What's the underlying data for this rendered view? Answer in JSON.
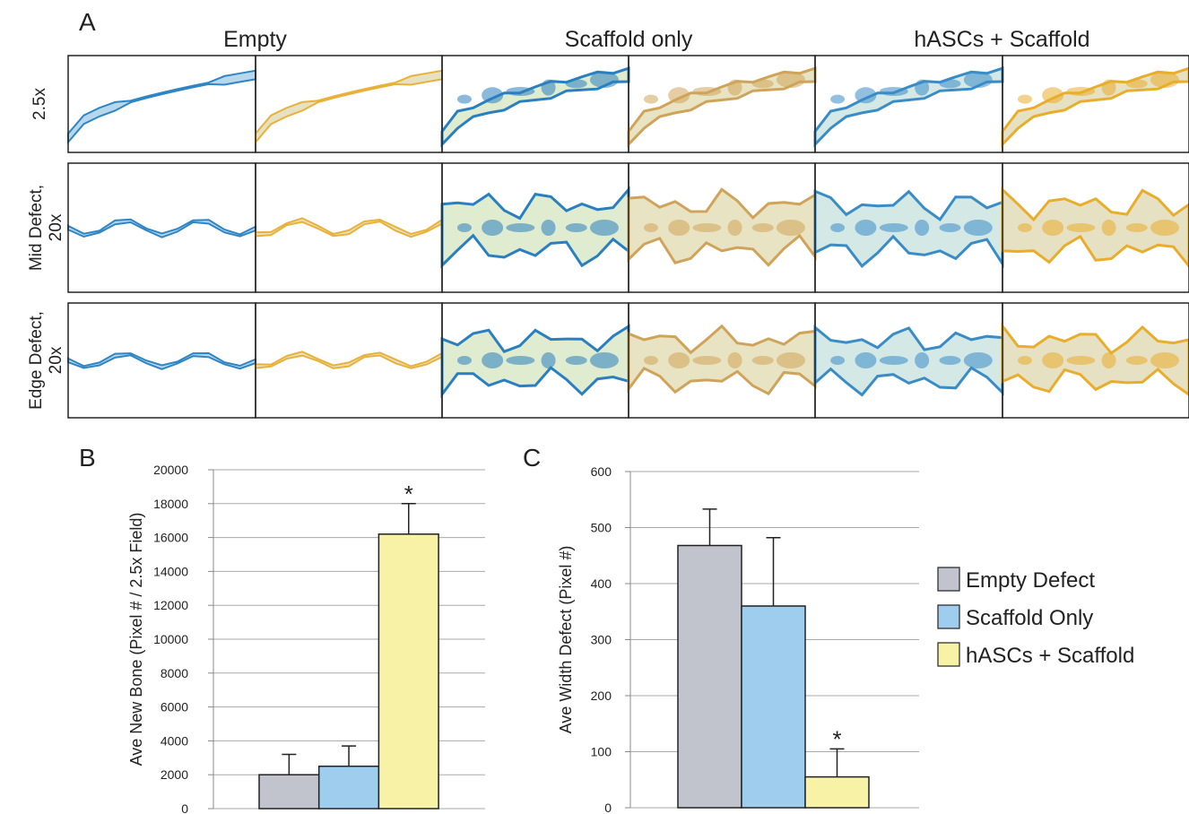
{
  "panel_a": {
    "label": "A",
    "columns": [
      "Empty",
      "Scaffold only",
      "hASCs + Scaffold"
    ],
    "rows": [
      "2.5x",
      "Mid Defect, 20x",
      "Edge Defect, 20x"
    ]
  },
  "legend": [
    {
      "name": "Empty Defect",
      "color": "#c1c4cc"
    },
    {
      "name": "Scaffold Only",
      "color": "#9fcdee"
    },
    {
      "name": "hASCs + Scaffold",
      "color": "#f7f2a6"
    }
  ],
  "chart_data": [
    {
      "type": "bar",
      "panel": "B",
      "ylabel": "Ave New Bone (Pixel # / 2.5x Field)",
      "values": [
        2000,
        2500,
        16200
      ],
      "errors": [
        1200,
        1200,
        1800
      ],
      "annotations": [
        {
          "index": 2,
          "text": "*"
        }
      ],
      "ylim": [
        0,
        20000
      ],
      "yticks": [
        0,
        2000,
        4000,
        6000,
        8000,
        10000,
        12000,
        14000,
        16000,
        18000,
        20000
      ],
      "grid": true
    },
    {
      "type": "bar",
      "panel": "C",
      "ylabel": "Ave Width Defect (Pixel #)",
      "values": [
        468,
        360,
        55
      ],
      "errors": [
        65,
        122,
        50
      ],
      "annotations": [
        {
          "index": 2,
          "text": "*"
        }
      ],
      "ylim": [
        0,
        600
      ],
      "yticks": [
        0,
        100,
        200,
        300,
        400,
        500,
        600
      ],
      "grid": true
    }
  ]
}
